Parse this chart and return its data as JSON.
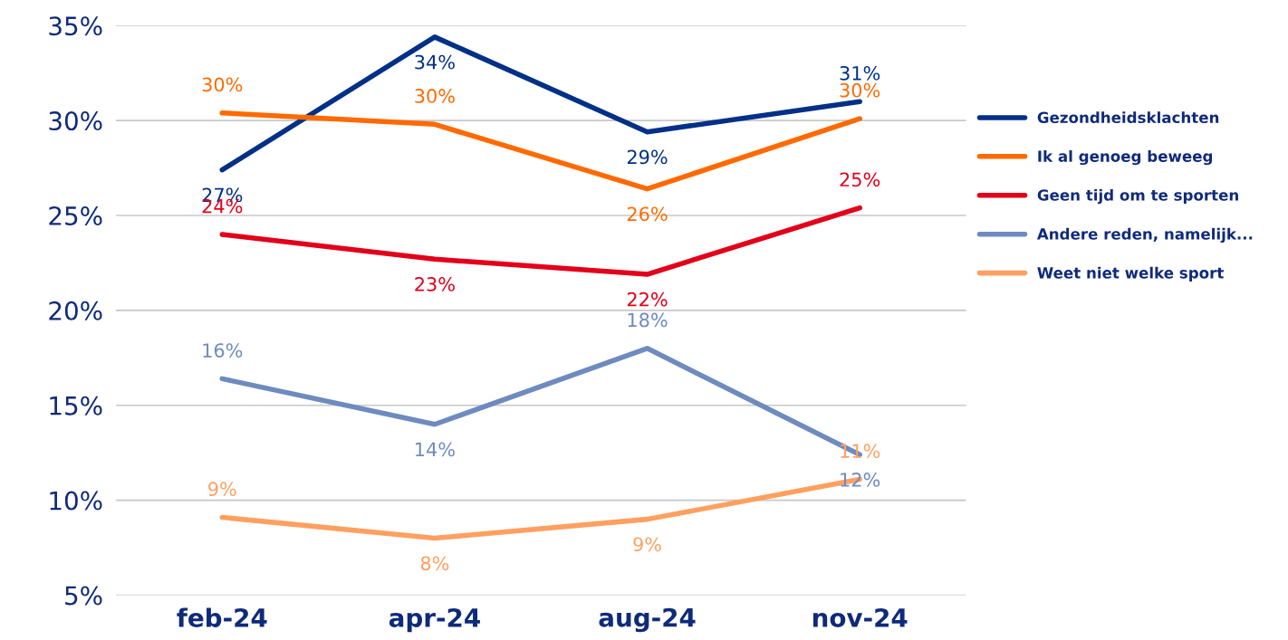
{
  "chart_data": {
    "type": "line",
    "categories": [
      "feb-24",
      "apr-24",
      "aug-24",
      "nov-24"
    ],
    "series": [
      {
        "name": "Gezondheidsklachten",
        "color": "#003087",
        "values": [
          27.4,
          34.4,
          29.4,
          31.0
        ],
        "value_labels": [
          "27%",
          "34%",
          "29%",
          "31%"
        ]
      },
      {
        "name": "Ik al genoeg beweeg",
        "color": "#ff6a00",
        "values": [
          30.4,
          29.8,
          26.4,
          30.1
        ],
        "value_labels": [
          "30%",
          "30%",
          "26%",
          "30%"
        ]
      },
      {
        "name": "Geen tijd om te sporten",
        "color": "#e2001a",
        "values": [
          24.0,
          22.7,
          21.9,
          25.4
        ],
        "value_labels": [
          "24%",
          "23%",
          "22%",
          "25%"
        ]
      },
      {
        "name": "Andere reden, namelijk...",
        "color": "#6e8bbf",
        "values": [
          16.4,
          14.0,
          18.0,
          12.4
        ],
        "value_labels": [
          "16%",
          "14%",
          "18%",
          "12%"
        ]
      },
      {
        "name": "Weet niet welke sport",
        "color": "#ffa060",
        "values": [
          9.1,
          8.0,
          9.0,
          11.1
        ],
        "value_labels": [
          "9%",
          "8%",
          "9%",
          "11%"
        ]
      }
    ],
    "ylim": [
      5,
      35
    ],
    "yticks": [
      {
        "value": 5,
        "label": "5%"
      },
      {
        "value": 10,
        "label": "10%"
      },
      {
        "value": 15,
        "label": "15%"
      },
      {
        "value": 20,
        "label": "20%"
      },
      {
        "value": 25,
        "label": "25%"
      },
      {
        "value": 30,
        "label": "30%"
      },
      {
        "value": 35,
        "label": "35%"
      }
    ],
    "grid": "y",
    "legend": "right",
    "marker": "none",
    "line_style": "solid"
  }
}
